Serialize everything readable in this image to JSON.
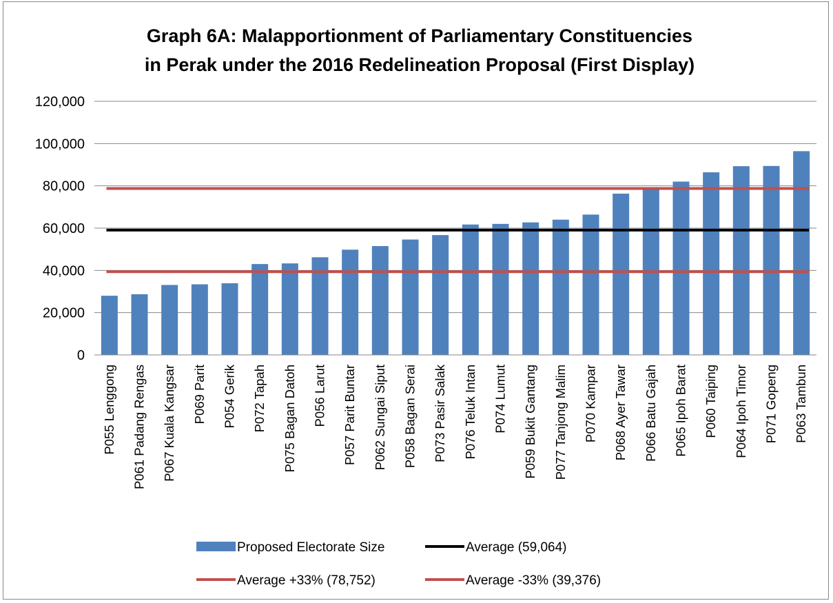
{
  "chart_data": {
    "type": "bar",
    "title_lines": [
      "Graph 6A: Malapportionment of Parliamentary Constituencies",
      "in Perak under the 2016 Redelineation Proposal (First Display)"
    ],
    "xlabel": "",
    "ylabel": "",
    "ylim": [
      0,
      120000
    ],
    "yticks": [
      0,
      20000,
      40000,
      60000,
      80000,
      100000,
      120000
    ],
    "ytick_labels": [
      "0",
      "20,000",
      "40,000",
      "60,000",
      "80,000",
      "100,000",
      "120,000"
    ],
    "grid": true,
    "legend_position": "bottom",
    "categories": [
      "P055 Lenggong",
      "P061 Padang Rengas",
      "P067 Kuala Kangsar",
      "P069 Parit",
      "P054 Gerik",
      "P072 Tapah",
      "P075 Bagan Datoh",
      "P056 Larut",
      "P057 Parit Buntar",
      "P062 Sungai Siput",
      "P058 Bagan Serai",
      "P073 Pasir Salak",
      "P076 Teluk Intan",
      "P074 Lumut",
      "P059 Bukit Gantang",
      "P077 Tanjong Malim",
      "P070 Kampar",
      "P068 Ayer Tawar",
      "P066  Batu Gajah",
      "P065 Ipoh Barat",
      "P060 Taiping",
      "P064 Ipoh Timor",
      "P071 Gopeng",
      "P063 Tambun"
    ],
    "series": [
      {
        "name": "Proposed Electorate Size",
        "kind": "bar",
        "color": "#4f81bd",
        "values": [
          28000,
          28700,
          33100,
          33400,
          33900,
          43000,
          43300,
          46200,
          49800,
          51500,
          54600,
          56700,
          61700,
          62000,
          62700,
          64000,
          66400,
          76300,
          78600,
          82000,
          86400,
          89300,
          89400,
          96400
        ]
      },
      {
        "name": "Average (59,064)",
        "kind": "hline",
        "color": "#000000",
        "value": 59064
      },
      {
        "name": "Average +33% (78,752)",
        "kind": "hline",
        "color": "#c0504d",
        "value": 78752
      },
      {
        "name": "Average -33% (39,376)",
        "kind": "hline",
        "color": "#c0504d",
        "value": 39376
      }
    ]
  }
}
